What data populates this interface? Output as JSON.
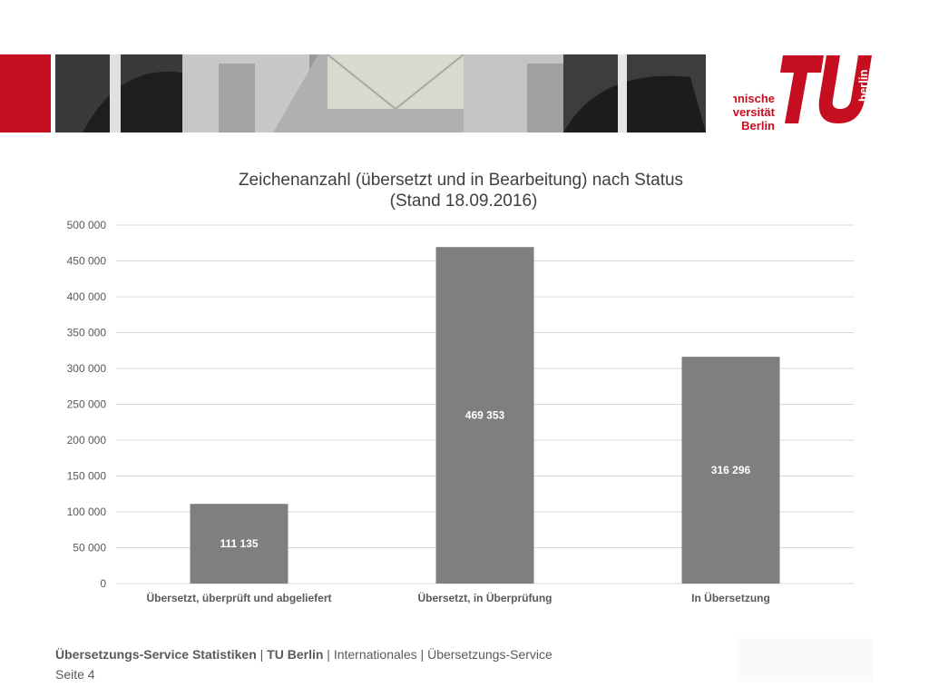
{
  "logo": {
    "line1": "Technische",
    "line2": "Universität",
    "line3": "Berlin",
    "vertical": "berlin",
    "color": "#c50e1f"
  },
  "chart_data": {
    "type": "bar",
    "title_line1": "Zeichenanzahl (übersetzt und in Bearbeitung) nach Status",
    "title_line2": "(Stand 18.09.2016)",
    "categories": [
      "Übersetzt, überprüft und abgeliefert",
      "Übersetzt, in Überprüfung",
      "In Übersetzung"
    ],
    "values": [
      111135,
      469353,
      316296
    ],
    "value_labels": [
      "111 135",
      "469 353",
      "316 296"
    ],
    "ylim": [
      0,
      500000
    ],
    "yticks": [
      0,
      50000,
      100000,
      150000,
      200000,
      250000,
      300000,
      350000,
      400000,
      450000,
      500000
    ],
    "ytick_labels": [
      "0",
      "50 000",
      "100 000",
      "150 000",
      "200 000",
      "250 000",
      "300 000",
      "350 000",
      "400 000",
      "450 000",
      "500 000"
    ],
    "bar_color": "#7f7f7f",
    "grid": true
  },
  "footer": {
    "bold1": "Übersetzungs-Service Statistiken",
    "sep1": " | ",
    "bold2": "TU Berlin",
    "rest": " | Internationales | Übersetzungs-Service",
    "page": "Seite 4"
  }
}
